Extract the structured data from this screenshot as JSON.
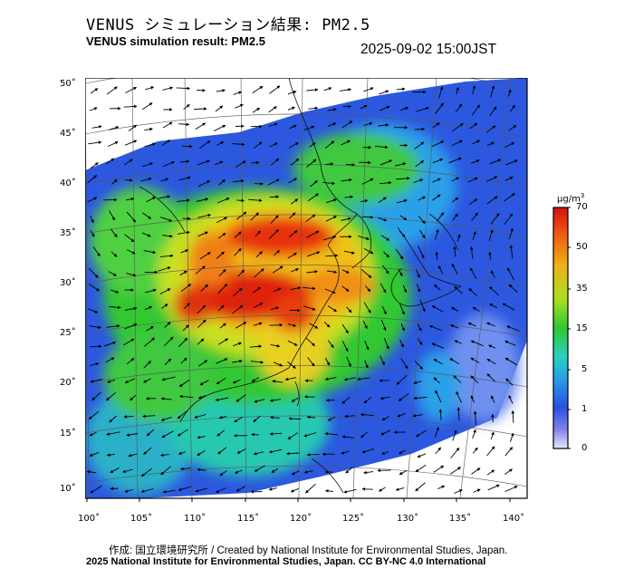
{
  "title_jp": "VENUS シミュレーション結果: PM2.5",
  "title_en": "VENUS simulation result: PM2.5",
  "timestamp": "2025-09-02 15:00JST",
  "credit": "作成: 国立環境研究所 / Created by National Institute for Environmental Studies, Japan.",
  "copyright": "2025 National Institute for Environmental Studies, Japan. CC BY-NC 4.0 International",
  "axes": {
    "lat_labels": [
      "50˚",
      "45˚",
      "40˚",
      "35˚",
      "30˚",
      "25˚",
      "20˚",
      "15˚",
      "10˚"
    ],
    "lon_labels": [
      "100˚",
      "105˚",
      "110˚",
      "115˚",
      "120˚",
      "125˚",
      "130˚",
      "135˚",
      "140˚"
    ],
    "lat_values": [
      50,
      45,
      40,
      35,
      30,
      25,
      20,
      15,
      10
    ],
    "lon_values": [
      100,
      105,
      110,
      115,
      120,
      125,
      130,
      135,
      140
    ]
  },
  "colorbar": {
    "unit_base": "µg/m",
    "unit_sup": "3",
    "labels": [
      "70",
      "50",
      "35",
      "15",
      "5",
      "1",
      "0"
    ],
    "colors": [
      "#d41010",
      "#f06010",
      "#f0b018",
      "#a8e020",
      "#30c830",
      "#28d0c0",
      "#2898e8",
      "#2850e0",
      "#8080e8",
      "#e8e8ff"
    ]
  },
  "legend": {
    "scale": "continuous"
  }
}
